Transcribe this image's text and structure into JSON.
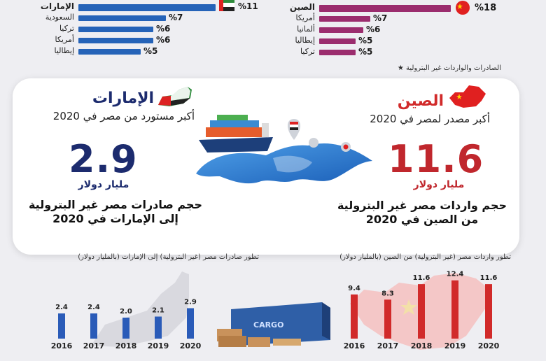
{
  "top_left": {
    "rows": [
      {
        "label": "الإمارات",
        "pct": "%11",
        "value": 11,
        "color": "#2563b8"
      },
      {
        "label": "السعودية",
        "pct": "%7",
        "value": 7,
        "color": "#2563b8"
      },
      {
        "label": "تركيا",
        "pct": "%6",
        "value": 6,
        "color": "#2563b8"
      },
      {
        "label": "أمريكا",
        "pct": "%6",
        "value": 6,
        "color": "#2563b8"
      },
      {
        "label": "إيطاليا",
        "pct": "%5",
        "value": 5,
        "color": "#2563b8"
      }
    ]
  },
  "top_right": {
    "rows": [
      {
        "label": "الصين",
        "pct": "%18",
        "value": 18,
        "color": "#9b2d6e"
      },
      {
        "label": "أمريكا",
        "pct": "%7",
        "value": 7,
        "color": "#9b2d6e"
      },
      {
        "label": "ألمانيا",
        "pct": "%6",
        "value": 6,
        "color": "#9b2d6e"
      },
      {
        "label": "إيطاليا",
        "pct": "%5",
        "value": 5,
        "color": "#9b2d6e"
      },
      {
        "label": "تركيا",
        "pct": "%5",
        "value": 5,
        "color": "#9b2d6e"
      }
    ],
    "footnote": "الصادرات والواردات غير البترولية ★"
  },
  "panel": {
    "left": {
      "country": "الإمارات",
      "subtitle": "أكبر مستورد من مصر في 2020",
      "value": "2.9",
      "unit": "مليار دولار",
      "desc_line1": "حجم صادرات مصر غير البترولية",
      "desc_line2": "إلى الإمارات في 2020",
      "color": "#1c2b6e"
    },
    "right": {
      "country": "الصين",
      "subtitle": "أكبر مصدر لمصر في 2020",
      "value": "11.6",
      "unit": "مليار دولار",
      "desc_line1": "حجم واردات مصر غير البترولية",
      "desc_line2": "من الصين في 2020",
      "color": "#c0272d"
    }
  },
  "colors": {
    "uae_bar": "#2a5bb8",
    "china_bar": "#d12a2a",
    "china_map": "#f4c7c7",
    "uae_map": "#d9d9df"
  },
  "chart_data": [
    {
      "type": "bar",
      "title": "تطور صادرات مصر (غير البترولية) إلى الإمارات (بالمليار دولار)",
      "categories": [
        "2016",
        "2017",
        "2018",
        "2019",
        "2020"
      ],
      "values": [
        2.4,
        2.4,
        2.0,
        2.1,
        2.9
      ],
      "value_labels": [
        "2.4",
        "2.4",
        "2.0",
        "2.1",
        "2.9"
      ],
      "ylim": [
        0,
        4
      ]
    },
    {
      "type": "bar",
      "title": "تطور واردات مصر (غير البترولية) من الصين (بالمليار دولار)",
      "categories": [
        "2016",
        "2017",
        "2018",
        "2019",
        "2020"
      ],
      "values": [
        9.4,
        8.3,
        11.6,
        12.4,
        11.6
      ],
      "value_labels": [
        "9.4",
        "8.3",
        "11.6",
        "12.4",
        "11.6"
      ],
      "ylim": [
        0,
        14
      ]
    }
  ]
}
